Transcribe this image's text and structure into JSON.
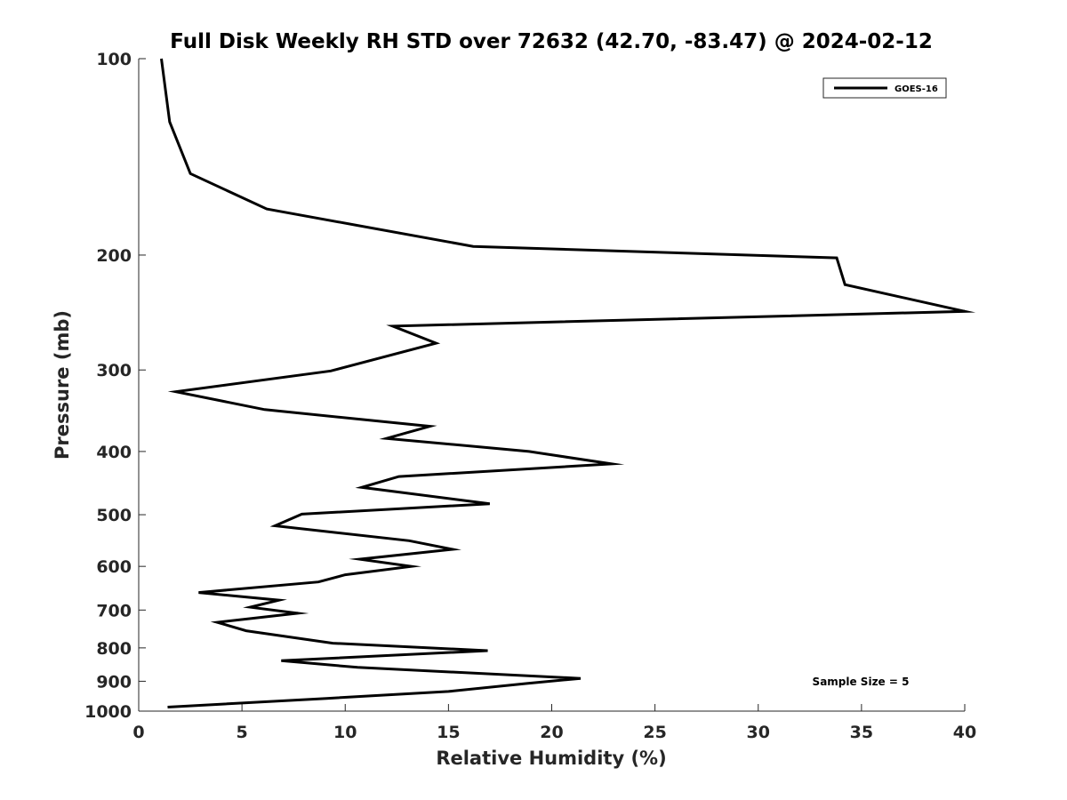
{
  "chart_data": {
    "type": "line",
    "title": "Full Disk Weekly RH STD over 72632 (42.70, -83.47) @ 2024-02-12",
    "xlabel": "Relative Humidity (%)",
    "ylabel": "Pressure (mb)",
    "xlim": [
      0,
      40
    ],
    "ylim": [
      100,
      1000
    ],
    "y_scale": "log",
    "y_inverted": true,
    "x_ticks": [
      "0",
      "5",
      "10",
      "15",
      "20",
      "25",
      "30",
      "35",
      "40"
    ],
    "y_ticks": [
      {
        "value": 100,
        "label": "100"
      },
      {
        "value": 200,
        "label": "200"
      },
      {
        "value": 300,
        "label": "300"
      },
      {
        "value": 400,
        "label": "400"
      },
      {
        "value": 500,
        "label": "500"
      },
      {
        "value": 600,
        "label": "600"
      },
      {
        "value": 700,
        "label": "700"
      },
      {
        "value": 800,
        "label": "800"
      },
      {
        "value": 900,
        "label": "900"
      },
      {
        "value": 1000,
        "label": "1000"
      }
    ],
    "legend": {
      "position": "top-right",
      "entries": [
        "GOES-16"
      ]
    },
    "annotation": "Sample Size = 5",
    "series": [
      {
        "name": "GOES-16",
        "color": "#000000",
        "points": [
          [
            1.1,
            100
          ],
          [
            1.5,
            125
          ],
          [
            2.5,
            150
          ],
          [
            6.2,
            170
          ],
          [
            16.2,
            194
          ],
          [
            33.8,
            202
          ],
          [
            34.2,
            222
          ],
          [
            40.0,
            244
          ],
          [
            12.3,
            257
          ],
          [
            14.4,
            273
          ],
          [
            9.3,
            301
          ],
          [
            1.8,
            324
          ],
          [
            6.1,
            345
          ],
          [
            14.1,
            366
          ],
          [
            12.0,
            382
          ],
          [
            18.9,
            400
          ],
          [
            22.9,
            418
          ],
          [
            12.6,
            437
          ],
          [
            10.8,
            454
          ],
          [
            17.0,
            481
          ],
          [
            7.9,
            499
          ],
          [
            6.6,
            520
          ],
          [
            13.1,
            548
          ],
          [
            15.2,
            565
          ],
          [
            10.7,
            585
          ],
          [
            13.2,
            600
          ],
          [
            10.0,
            618
          ],
          [
            8.7,
            634
          ],
          [
            2.9,
            658
          ],
          [
            6.8,
            676
          ],
          [
            5.4,
            693
          ],
          [
            7.7,
            708
          ],
          [
            3.8,
            731
          ],
          [
            5.2,
            753
          ],
          [
            9.4,
            787
          ],
          [
            16.9,
            808
          ],
          [
            6.9,
            837
          ],
          [
            10.6,
            857
          ],
          [
            21.4,
            891
          ],
          [
            18.8,
            907
          ],
          [
            15.0,
            933
          ],
          [
            9.1,
            956
          ],
          [
            1.4,
            986
          ]
        ]
      }
    ]
  }
}
